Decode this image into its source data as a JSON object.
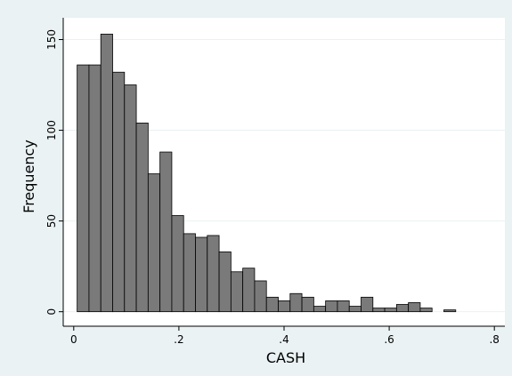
{
  "chart_data": {
    "type": "bar",
    "xlabel": "CASH",
    "ylabel": "Frequency",
    "xlim": [
      -0.02,
      0.82
    ],
    "ylim": [
      -8,
      162
    ],
    "x_ticks": [
      0,
      0.2,
      0.4,
      0.6,
      0.8
    ],
    "x_tick_labels": [
      "0",
      ".2",
      ".4",
      ".6",
      ".8"
    ],
    "y_ticks": [
      0,
      50,
      100,
      150
    ],
    "y_tick_labels": [
      "0",
      "50",
      "100",
      "150"
    ],
    "grid": "horizontal",
    "legend": "none",
    "bin_width": 0.0225,
    "bin_start": 0.0065,
    "values": [
      136,
      136,
      153,
      132,
      125,
      104,
      76,
      88,
      53,
      43,
      41,
      42,
      33,
      22,
      24,
      17,
      8,
      6,
      10,
      8,
      3,
      6,
      6,
      3,
      8,
      2,
      2,
      4,
      5,
      2,
      0,
      1
    ],
    "colors": {
      "outer_background": "#eaf2f3",
      "plot_background": "#ffffff",
      "bar_fill": "#7a7a7a",
      "bar_edge": "#000000",
      "grid": "#eaf2f3",
      "axis": "#000000"
    }
  }
}
